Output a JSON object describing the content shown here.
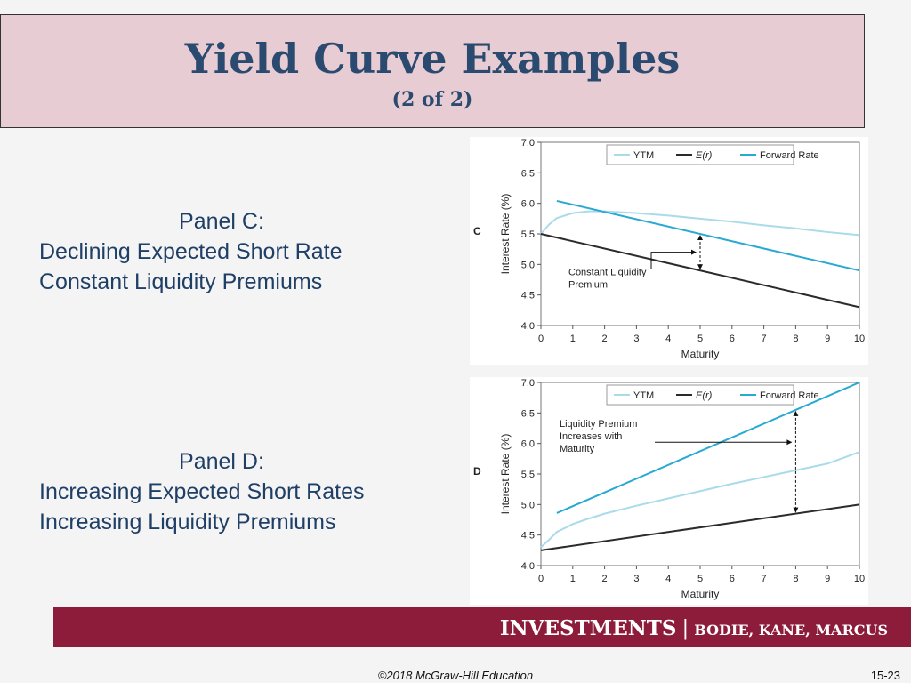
{
  "slide": {
    "title": "Yield Curve Examples",
    "subtitle": "(2 of 2)"
  },
  "panel_c_text": {
    "heading": "Panel C:",
    "line1": "Declining Expected Short Rate",
    "line2": "Constant Liquidity Premiums"
  },
  "panel_d_text": {
    "heading": "Panel D:",
    "line1": "Increasing Expected Short Rates",
    "line2": "Increasing Liquidity Premiums"
  },
  "footer": {
    "brand": "INVESTMENTS",
    "separator": "|",
    "authors": "BODIE, KANE, MARCUS",
    "copyright": "©2018 McGraw-Hill Education",
    "page": "15-23"
  },
  "colors": {
    "ytm": "#a9dbea",
    "er": "#2b2b2b",
    "forward": "#27a9d1",
    "title": "#2b4a6f",
    "footer_bar": "#8c1c3a"
  },
  "chart_data": [
    {
      "type": "line",
      "panel_label": "C",
      "xlabel": "Maturity",
      "ylabel": "Interest Rate (%)",
      "xlim": [
        0,
        10
      ],
      "ylim": [
        4.0,
        7.0
      ],
      "xticks": [
        "0",
        "1",
        "2",
        "3",
        "4",
        "5",
        "6",
        "7",
        "8",
        "9",
        "10"
      ],
      "yticks": [
        "4.0",
        "4.5",
        "5.0",
        "5.5",
        "6.0",
        "6.5",
        "7.0"
      ],
      "grid": false,
      "legend_position": "top-right",
      "legend": [
        "YTM",
        "E(r)",
        "Forward Rate"
      ],
      "annotation": [
        "Constant Liquidity",
        "Premium"
      ],
      "annotation_at": 5,
      "series": [
        {
          "name": "YTM",
          "x": [
            0,
            0.25,
            0.5,
            1,
            1.5,
            2,
            3,
            4,
            5,
            6,
            7,
            8,
            9,
            10
          ],
          "values": [
            5.5,
            5.65,
            5.76,
            5.84,
            5.87,
            5.87,
            5.84,
            5.8,
            5.75,
            5.7,
            5.64,
            5.59,
            5.53,
            5.48
          ]
        },
        {
          "name": "E(r)",
          "x": [
            0,
            10
          ],
          "values": [
            5.5,
            4.3
          ]
        },
        {
          "name": "Forward Rate",
          "x": [
            0.5,
            10
          ],
          "values": [
            6.04,
            4.9
          ]
        }
      ]
    },
    {
      "type": "line",
      "panel_label": "D",
      "xlabel": "Maturity",
      "ylabel": "Interest Rate (%)",
      "xlim": [
        0,
        10
      ],
      "ylim": [
        4.0,
        7.0
      ],
      "xticks": [
        "0",
        "1",
        "2",
        "3",
        "4",
        "5",
        "6",
        "7",
        "8",
        "9",
        "10"
      ],
      "yticks": [
        "4.0",
        "4.5",
        "5.0",
        "5.5",
        "6.0",
        "6.5",
        "7.0"
      ],
      "grid": false,
      "legend_position": "top-right",
      "legend": [
        "YTM",
        "E(r)",
        "Forward Rate"
      ],
      "annotation": [
        "Liquidity Premium",
        "Increases with",
        "Maturity"
      ],
      "annotation_at": 8,
      "series": [
        {
          "name": "YTM",
          "x": [
            0,
            0.25,
            0.5,
            1,
            1.5,
            2,
            3,
            4,
            5,
            6,
            7,
            8,
            9,
            10
          ],
          "values": [
            4.3,
            4.42,
            4.55,
            4.68,
            4.77,
            4.85,
            4.98,
            5.1,
            5.22,
            5.34,
            5.45,
            5.56,
            5.67,
            5.86
          ]
        },
        {
          "name": "E(r)",
          "x": [
            0,
            10
          ],
          "values": [
            4.25,
            5.0
          ]
        },
        {
          "name": "Forward Rate",
          "x": [
            0.5,
            10
          ],
          "values": [
            4.86,
            7.0
          ]
        }
      ]
    }
  ]
}
